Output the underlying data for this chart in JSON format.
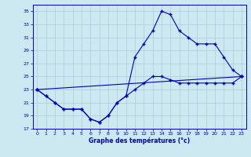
{
  "background_color": "#cce8f0",
  "grid_color": "#aaccdd",
  "line_color": "#0000bb",
  "xlabel": "Graphe des températures (°c)",
  "xlabel_color": "#0000cc",
  "xlim": [
    -0.5,
    23.5
  ],
  "ylim": [
    17,
    36
  ],
  "xticks": [
    0,
    1,
    2,
    3,
    4,
    5,
    6,
    7,
    8,
    9,
    10,
    11,
    12,
    13,
    14,
    15,
    16,
    17,
    18,
    19,
    20,
    21,
    22,
    23
  ],
  "yticks": [
    17,
    19,
    21,
    23,
    25,
    27,
    29,
    31,
    33,
    35
  ],
  "line_straight": {
    "x": [
      0,
      23
    ],
    "y": [
      23,
      25
    ]
  },
  "line_mid": {
    "x": [
      0,
      1,
      2,
      3,
      4,
      5,
      6,
      7,
      8,
      9,
      10,
      11,
      12,
      13,
      14,
      15,
      16,
      17,
      18,
      19,
      20,
      21,
      22,
      23
    ],
    "y": [
      23,
      22,
      21,
      20,
      20,
      20,
      18.5,
      18,
      19,
      21,
      22,
      23,
      24,
      25,
      25,
      24.5,
      24,
      24,
      24,
      24,
      24,
      24,
      24,
      25
    ]
  },
  "line_high": {
    "x": [
      0,
      1,
      2,
      3,
      4,
      5,
      6,
      7,
      8,
      9,
      10,
      11,
      12,
      13,
      14,
      15,
      16,
      17,
      18,
      19,
      20,
      21,
      22,
      23
    ],
    "y": [
      23,
      22,
      21,
      20,
      20,
      20,
      18.5,
      18,
      19,
      21,
      22,
      28,
      30,
      32,
      35,
      34.5,
      32,
      31,
      30,
      30,
      30,
      28,
      26,
      25
    ]
  }
}
